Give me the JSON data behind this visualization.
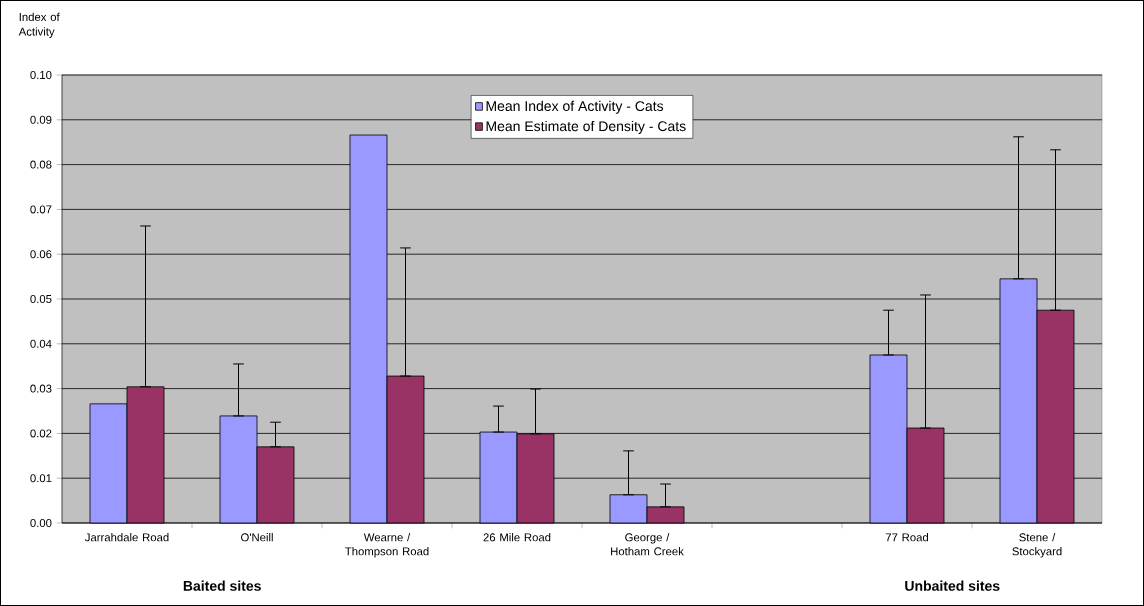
{
  "chart_data": {
    "type": "bar",
    "ylabel": "Index of Activity",
    "categories": [
      "Jarrahdale Road",
      "O'Neill",
      "Wearne / Thompson Road",
      "26 Mile Road",
      "George / Hotham Creek",
      null,
      "77 Road",
      "Stene / Stockyard"
    ],
    "series": [
      {
        "name": "Mean Index of Activity - Cats",
        "color": "#9999ff",
        "values": [
          0.0266,
          0.0239,
          0.0866,
          0.0203,
          0.0063,
          null,
          0.0375,
          0.0545
        ],
        "errors": [
          null,
          [
            0.0239,
            0.0355
          ],
          null,
          [
            0.0203,
            0.0261
          ],
          [
            0.0063,
            0.0161
          ],
          null,
          [
            0.0375,
            0.0475
          ],
          [
            0.0545,
            0.0862
          ]
        ]
      },
      {
        "name": "Mean Estimate of Density - Cats",
        "color": "#993366",
        "values": [
          0.0304,
          0.017,
          0.0328,
          0.0199,
          0.0036,
          null,
          0.0212,
          0.0475
        ],
        "errors": [
          [
            0.0304,
            0.0663
          ],
          [
            0.017,
            0.0225
          ],
          [
            0.0328,
            0.0614
          ],
          [
            0.0199,
            0.0299
          ],
          [
            0.0036,
            0.0087
          ],
          null,
          [
            0.0212,
            0.0509
          ],
          [
            0.0475,
            0.0833
          ]
        ]
      }
    ],
    "ylim": [
      0,
      0.1
    ],
    "yticks": [
      {
        "value": 0,
        "label": "0.00"
      },
      {
        "value": 0.01,
        "label": "0.01"
      },
      {
        "value": 0.02,
        "label": "0.02"
      },
      {
        "value": 0.03,
        "label": "0.03"
      },
      {
        "value": 0.04,
        "label": "0.04"
      },
      {
        "value": 0.05,
        "label": "0.05"
      },
      {
        "value": 0.06,
        "label": "0.06"
      },
      {
        "value": 0.07,
        "label": "0.07"
      },
      {
        "value": 0.08,
        "label": "0.08"
      },
      {
        "value": 0.09,
        "label": "0.09"
      },
      {
        "value": 0.1,
        "label": "0.10"
      }
    ],
    "grid": "y",
    "legend": "top",
    "annotations": [
      "Baited sites",
      "Unbaited sites"
    ]
  }
}
